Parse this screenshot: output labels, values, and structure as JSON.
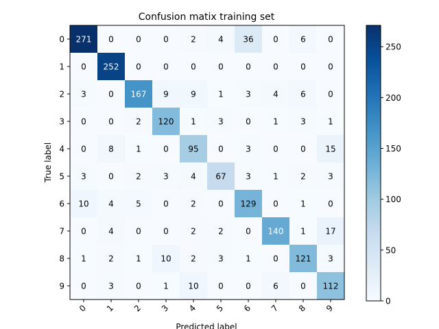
{
  "chart_data": {
    "type": "heatmap",
    "title": "Confusion matix training set",
    "xlabel": "Predicted label",
    "ylabel": "True label",
    "x_categories": [
      "0",
      "1",
      "2",
      "3",
      "4",
      "5",
      "6",
      "7",
      "8",
      "9"
    ],
    "y_categories": [
      "0",
      "1",
      "2",
      "3",
      "4",
      "5",
      "6",
      "7",
      "8",
      "9"
    ],
    "values": [
      [
        271,
        0,
        0,
        0,
        2,
        4,
        36,
        0,
        6,
        0
      ],
      [
        0,
        252,
        0,
        0,
        0,
        0,
        0,
        0,
        0,
        0
      ],
      [
        3,
        0,
        167,
        9,
        9,
        1,
        3,
        4,
        6,
        0
      ],
      [
        0,
        0,
        2,
        120,
        1,
        3,
        0,
        1,
        3,
        1
      ],
      [
        0,
        8,
        1,
        0,
        95,
        0,
        3,
        0,
        0,
        15
      ],
      [
        3,
        0,
        2,
        3,
        4,
        67,
        3,
        1,
        2,
        3
      ],
      [
        10,
        4,
        5,
        0,
        2,
        0,
        129,
        0,
        1,
        0
      ],
      [
        0,
        4,
        0,
        0,
        2,
        2,
        0,
        140,
        1,
        17
      ],
      [
        1,
        2,
        1,
        10,
        2,
        3,
        1,
        0,
        121,
        3
      ],
      [
        0,
        3,
        0,
        1,
        10,
        0,
        0,
        6,
        0,
        112
      ]
    ],
    "colormap": "Blues",
    "vmin": 0,
    "vmax": 271,
    "colorbar": {
      "ticks": [
        0,
        50,
        100,
        150,
        200,
        250
      ],
      "tick_labels": [
        "0",
        "50",
        "100",
        "150",
        "200",
        "250"
      ]
    },
    "text_color_threshold": 135.5,
    "text_colors": {
      "light": "#ffffff",
      "dark": "#000000"
    },
    "grid": false
  }
}
